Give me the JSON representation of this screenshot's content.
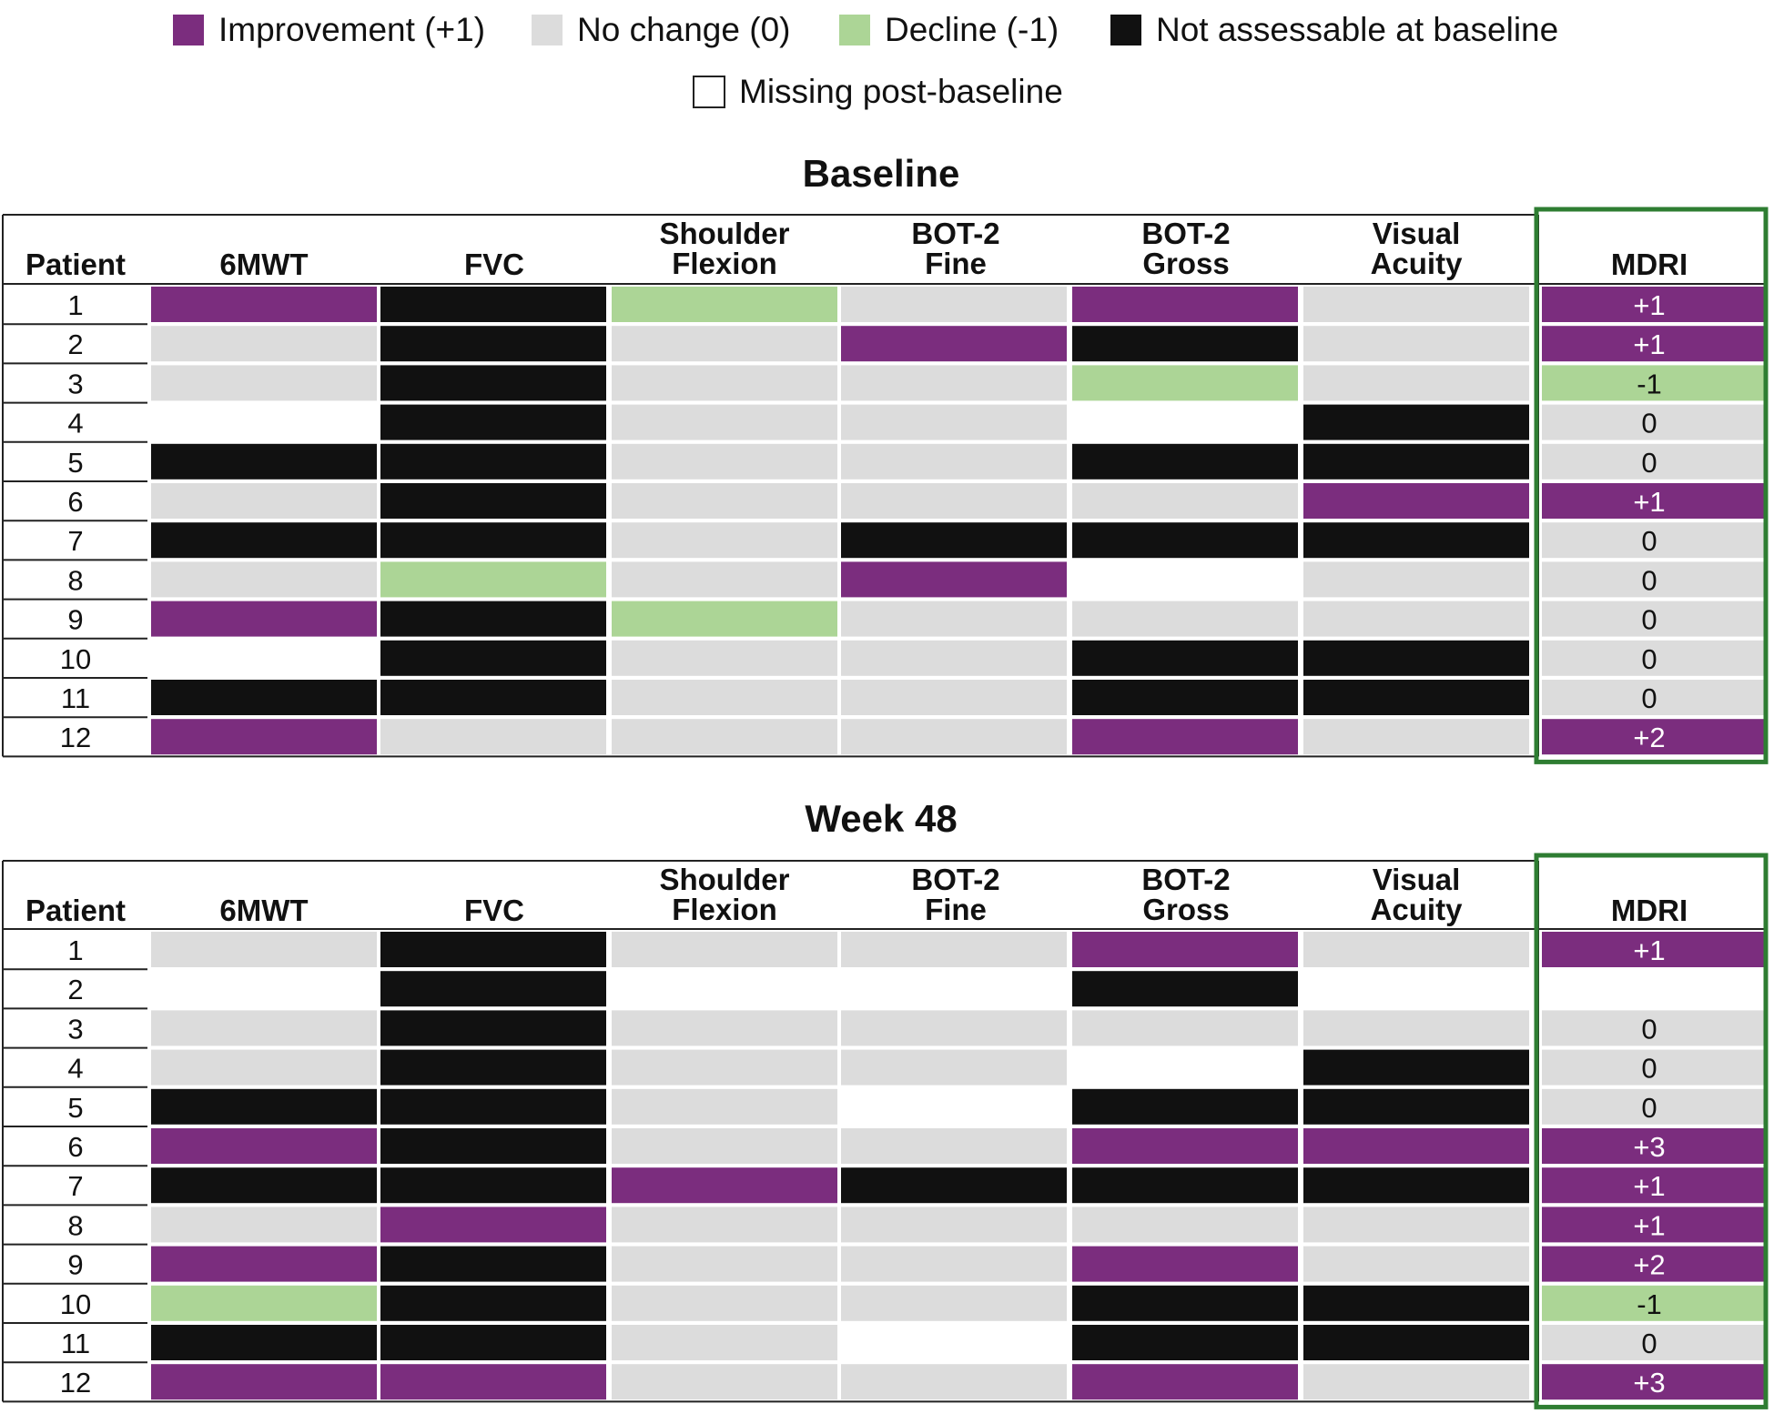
{
  "legend": {
    "items": [
      {
        "key": "imp",
        "label": "Improvement (+1)",
        "color": "#7b2d7e"
      },
      {
        "key": "nc",
        "label": "No change (0)",
        "color": "#dcdcdc"
      },
      {
        "key": "dec",
        "label": "Decline (-1)",
        "color": "#acd596"
      },
      {
        "key": "na",
        "label": "Not assessable at baseline",
        "color": "#111111"
      },
      {
        "key": "miss",
        "label": "Missing post-baseline",
        "color": "#ffffff"
      }
    ]
  },
  "chart_data": {
    "type": "heatmap",
    "columns": [
      {
        "lines": [
          "Patient"
        ]
      },
      {
        "lines": [
          "6MWT"
        ]
      },
      {
        "lines": [
          "FVC"
        ]
      },
      {
        "lines": [
          "Shoulder",
          "Flexion"
        ]
      },
      {
        "lines": [
          "BOT-2",
          "Fine"
        ]
      },
      {
        "lines": [
          "BOT-2",
          "Gross"
        ]
      },
      {
        "lines": [
          "Visual",
          "Acuity"
        ]
      },
      {
        "lines": [
          "MDRI"
        ]
      }
    ],
    "panels": [
      {
        "title": "Baseline",
        "rows": [
          {
            "patient": "1",
            "cells": [
              "imp",
              "na",
              "dec",
              "nc",
              "imp",
              "nc"
            ],
            "mdri": "+1",
            "mdri_cat": "imp"
          },
          {
            "patient": "2",
            "cells": [
              "nc",
              "na",
              "nc",
              "imp",
              "na",
              "nc"
            ],
            "mdri": "+1",
            "mdri_cat": "imp"
          },
          {
            "patient": "3",
            "cells": [
              "nc",
              "na",
              "nc",
              "nc",
              "dec",
              "nc"
            ],
            "mdri": "-1",
            "mdri_cat": "dec"
          },
          {
            "patient": "4",
            "cells": [
              "miss",
              "na",
              "nc",
              "nc",
              "miss",
              "na"
            ],
            "mdri": "0",
            "mdri_cat": "nc"
          },
          {
            "patient": "5",
            "cells": [
              "na",
              "na",
              "nc",
              "nc",
              "na",
              "na"
            ],
            "mdri": "0",
            "mdri_cat": "nc"
          },
          {
            "patient": "6",
            "cells": [
              "nc",
              "na",
              "nc",
              "nc",
              "nc",
              "imp"
            ],
            "mdri": "+1",
            "mdri_cat": "imp"
          },
          {
            "patient": "7",
            "cells": [
              "na",
              "na",
              "nc",
              "na",
              "na",
              "na"
            ],
            "mdri": "0",
            "mdri_cat": "nc"
          },
          {
            "patient": "8",
            "cells": [
              "nc",
              "dec",
              "nc",
              "imp",
              "miss",
              "nc"
            ],
            "mdri": "0",
            "mdri_cat": "nc"
          },
          {
            "patient": "9",
            "cells": [
              "imp",
              "na",
              "dec",
              "nc",
              "nc",
              "nc"
            ],
            "mdri": "0",
            "mdri_cat": "nc"
          },
          {
            "patient": "10",
            "cells": [
              "miss",
              "na",
              "nc",
              "nc",
              "na",
              "na"
            ],
            "mdri": "0",
            "mdri_cat": "nc"
          },
          {
            "patient": "11",
            "cells": [
              "na",
              "na",
              "nc",
              "nc",
              "na",
              "na"
            ],
            "mdri": "0",
            "mdri_cat": "nc"
          },
          {
            "patient": "12",
            "cells": [
              "imp",
              "nc",
              "nc",
              "nc",
              "imp",
              "nc"
            ],
            "mdri": "+2",
            "mdri_cat": "imp"
          }
        ]
      },
      {
        "title": "Week 48",
        "rows": [
          {
            "patient": "1",
            "cells": [
              "nc",
              "na",
              "nc",
              "nc",
              "imp",
              "nc"
            ],
            "mdri": "+1",
            "mdri_cat": "imp"
          },
          {
            "patient": "2",
            "cells": [
              "miss",
              "na",
              "miss",
              "miss",
              "na",
              "miss"
            ],
            "mdri": "",
            "mdri_cat": "miss"
          },
          {
            "patient": "3",
            "cells": [
              "nc",
              "na",
              "nc",
              "nc",
              "nc",
              "nc"
            ],
            "mdri": "0",
            "mdri_cat": "nc"
          },
          {
            "patient": "4",
            "cells": [
              "nc",
              "na",
              "nc",
              "nc",
              "miss",
              "na"
            ],
            "mdri": "0",
            "mdri_cat": "nc"
          },
          {
            "patient": "5",
            "cells": [
              "na",
              "na",
              "nc",
              "miss",
              "na",
              "na"
            ],
            "mdri": "0",
            "mdri_cat": "nc"
          },
          {
            "patient": "6",
            "cells": [
              "imp",
              "na",
              "nc",
              "nc",
              "imp",
              "imp"
            ],
            "mdri": "+3",
            "mdri_cat": "imp"
          },
          {
            "patient": "7",
            "cells": [
              "na",
              "na",
              "imp",
              "na",
              "na",
              "na"
            ],
            "mdri": "+1",
            "mdri_cat": "imp"
          },
          {
            "patient": "8",
            "cells": [
              "nc",
              "imp",
              "nc",
              "nc",
              "nc",
              "nc"
            ],
            "mdri": "+1",
            "mdri_cat": "imp"
          },
          {
            "patient": "9",
            "cells": [
              "imp",
              "na",
              "nc",
              "nc",
              "imp",
              "nc"
            ],
            "mdri": "+2",
            "mdri_cat": "imp"
          },
          {
            "patient": "10",
            "cells": [
              "dec",
              "na",
              "nc",
              "nc",
              "na",
              "na"
            ],
            "mdri": "-1",
            "mdri_cat": "dec"
          },
          {
            "patient": "11",
            "cells": [
              "na",
              "na",
              "nc",
              "miss",
              "na",
              "na"
            ],
            "mdri": "0",
            "mdri_cat": "nc"
          },
          {
            "patient": "12",
            "cells": [
              "imp",
              "imp",
              "nc",
              "nc",
              "imp",
              "nc"
            ],
            "mdri": "+3",
            "mdri_cat": "imp"
          }
        ]
      }
    ],
    "mdri_box_color": "#2e7d32"
  }
}
